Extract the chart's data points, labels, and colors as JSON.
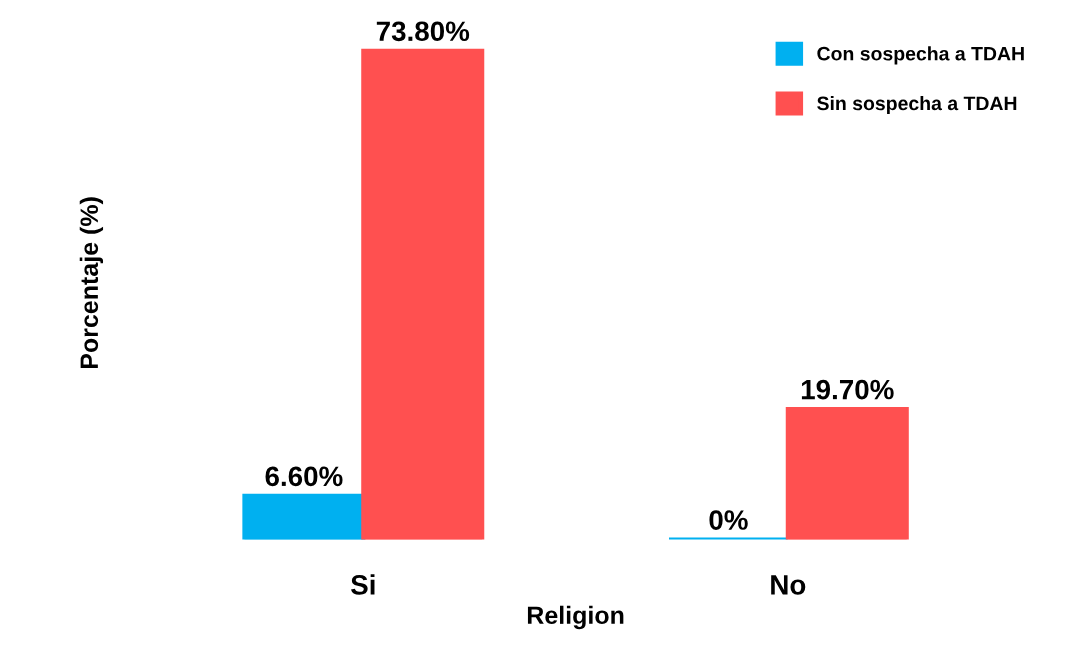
{
  "chart_data": {
    "type": "bar",
    "xlabel": "Religion",
    "ylabel": "Porcentaje (%)",
    "categories": [
      "Si",
      "No"
    ],
    "series": [
      {
        "name": "Con sospecha a TDAH",
        "color": "#00b0f0",
        "values": [
          6.6,
          0
        ],
        "value_labels": [
          "6.60%",
          "0%"
        ]
      },
      {
        "name": "Sin sospecha a TDAH",
        "color": "#ff5050",
        "values": [
          73.8,
          19.7
        ],
        "value_labels": [
          "73.80%",
          "19.70%"
        ]
      }
    ],
    "legend": "top right",
    "grid": false
  }
}
